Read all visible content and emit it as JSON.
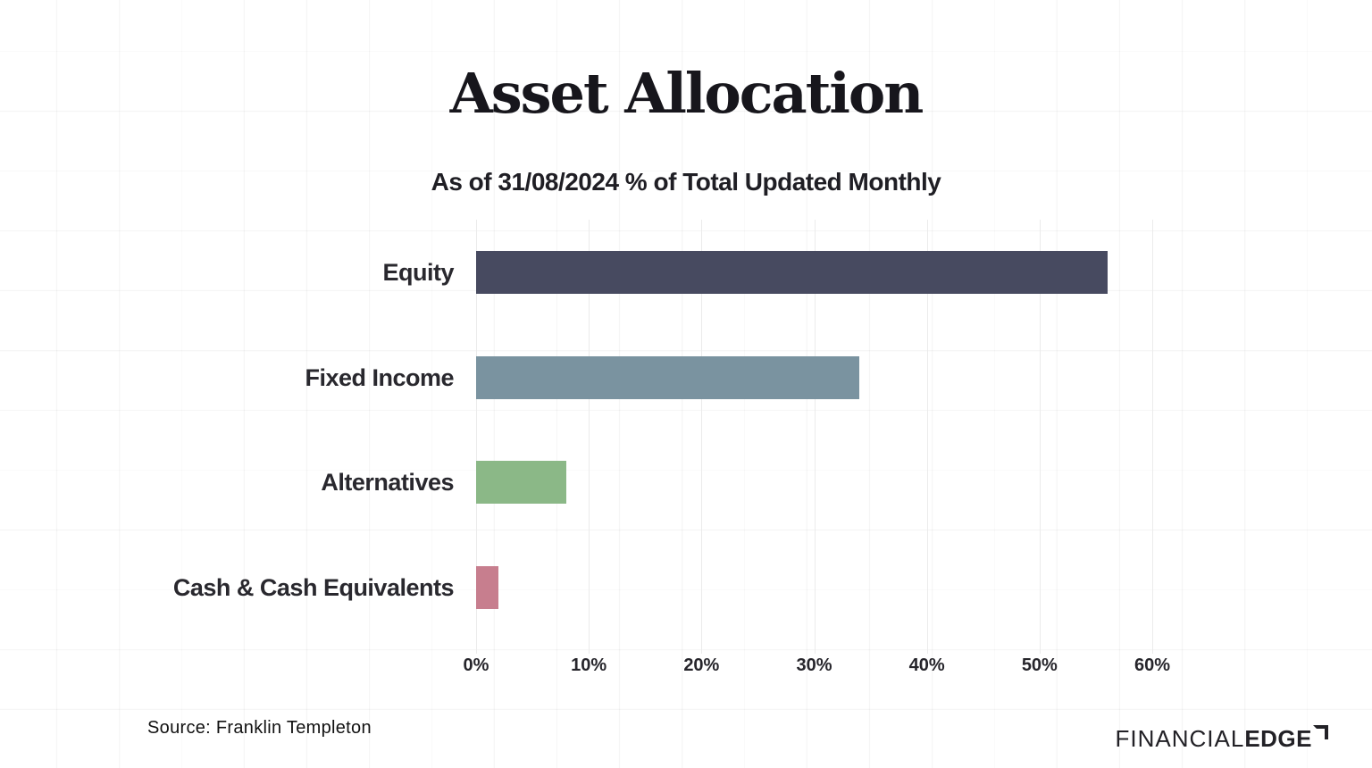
{
  "header": {
    "title": "Asset Allocation",
    "subtitle": "As of 31/08/2024 % of Total Updated Monthly"
  },
  "footer": {
    "source": "Source: Franklin Templeton",
    "logo_thin": "FINANCIAL",
    "logo_bold": "EDGE"
  },
  "chart_data": {
    "type": "bar",
    "orientation": "horizontal",
    "title": "Asset Allocation",
    "subtitle": "As of 31/08/2024 % of Total Updated Monthly",
    "categories": [
      "Equity",
      "Fixed Income",
      "Alternatives",
      "Cash & Cash Equivalents"
    ],
    "values": [
      56,
      34,
      8,
      2
    ],
    "unit": "%",
    "bar_colors": [
      "#474A60",
      "#7A93A0",
      "#8BB887",
      "#C77E8E"
    ],
    "xlim": [
      0,
      60
    ],
    "xtick_values": [
      0,
      10,
      20,
      30,
      40,
      50,
      60
    ],
    "xtick_labels": [
      "0%",
      "10%",
      "20%",
      "30%",
      "40%",
      "50%",
      "60%"
    ],
    "grid": true,
    "legend": false
  }
}
